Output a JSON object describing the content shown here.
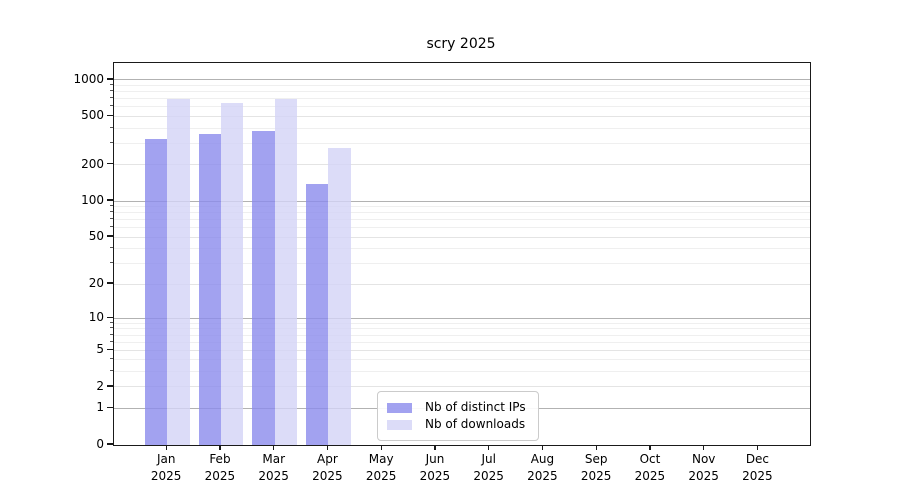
{
  "chart_data": {
    "type": "bar",
    "title": "scry 2025",
    "categories": [
      "Jan",
      "Feb",
      "Mar",
      "Apr",
      "May",
      "Jun",
      "Jul",
      "Aug",
      "Sep",
      "Oct",
      "Nov",
      "Dec"
    ],
    "year_label": "2025",
    "yscale": "log1p",
    "yticks": [
      0,
      1,
      2,
      5,
      10,
      20,
      50,
      100,
      200,
      500,
      1000
    ],
    "minor_yticks": [
      3,
      4,
      6,
      7,
      8,
      9,
      30,
      40,
      60,
      70,
      80,
      90,
      300,
      400,
      600,
      700,
      800,
      900
    ],
    "ylim": [
      0,
      1360
    ],
    "xlabel": "",
    "ylabel": "",
    "grid": "horizontal",
    "legend_position": "lower-center",
    "series": [
      {
        "name": "Nb of distinct IPs",
        "color": "#8b8bec",
        "values": [
          328,
          355,
          380,
          139,
          null,
          null,
          null,
          null,
          null,
          null,
          null,
          null
        ]
      },
      {
        "name": "Nb of downloads",
        "color": "#d3d3f6",
        "values": [
          690,
          648,
          700,
          274,
          null,
          null,
          null,
          null,
          null,
          null,
          null,
          null
        ]
      }
    ]
  }
}
